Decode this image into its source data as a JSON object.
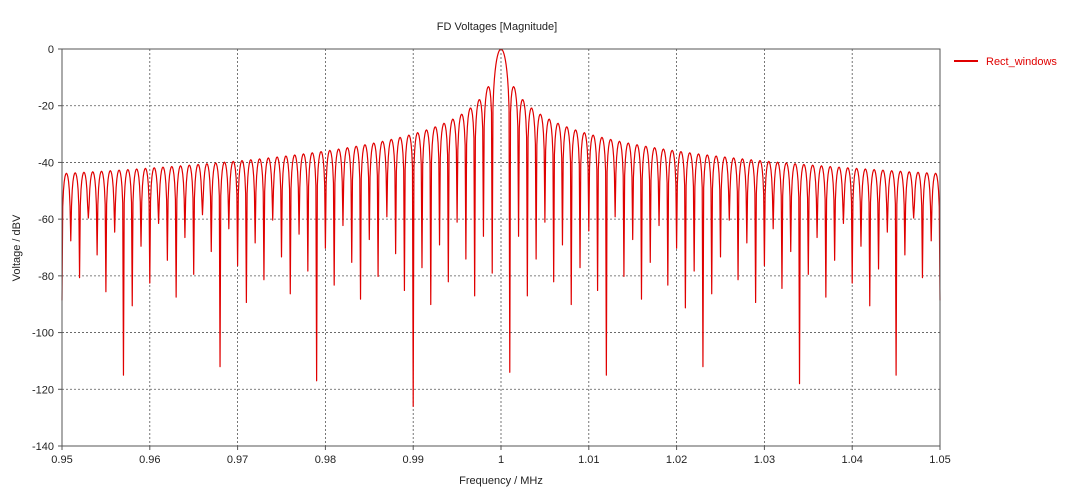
{
  "chart_data": {
    "type": "line",
    "title": "FD Voltages [Magnitude]",
    "xlabel": "Frequency / MHz",
    "ylabel": "Voltage / dBV",
    "xlim": [
      0.95,
      1.05
    ],
    "ylim": [
      -140,
      0
    ],
    "x_ticks": [
      "0.95",
      "0.96",
      "0.97",
      "0.98",
      "0.99",
      "1",
      "1.01",
      "1.02",
      "1.03",
      "1.04",
      "1.05"
    ],
    "y_ticks": [
      "0",
      "-20",
      "-40",
      "-60",
      "-80",
      "-100",
      "-120",
      "-140"
    ],
    "grid": true,
    "legend_position": "top-right",
    "series": [
      {
        "name": "Rect_windows",
        "color": "#e00000",
        "center": 1.0,
        "peak": 0,
        "null_spacing": 0.001,
        "x_range": [
          0.95,
          1.05
        ],
        "deep_nulls": [
          {
            "x": 0.957,
            "y": -115
          },
          {
            "x": 0.968,
            "y": -112
          },
          {
            "x": 0.979,
            "y": -117
          },
          {
            "x": 0.99,
            "y": -126
          },
          {
            "x": 1.001,
            "y": -114
          },
          {
            "x": 1.012,
            "y": -115
          },
          {
            "x": 1.023,
            "y": -112
          },
          {
            "x": 1.034,
            "y": -118
          },
          {
            "x": 1.045,
            "y": -115
          }
        ]
      }
    ]
  }
}
